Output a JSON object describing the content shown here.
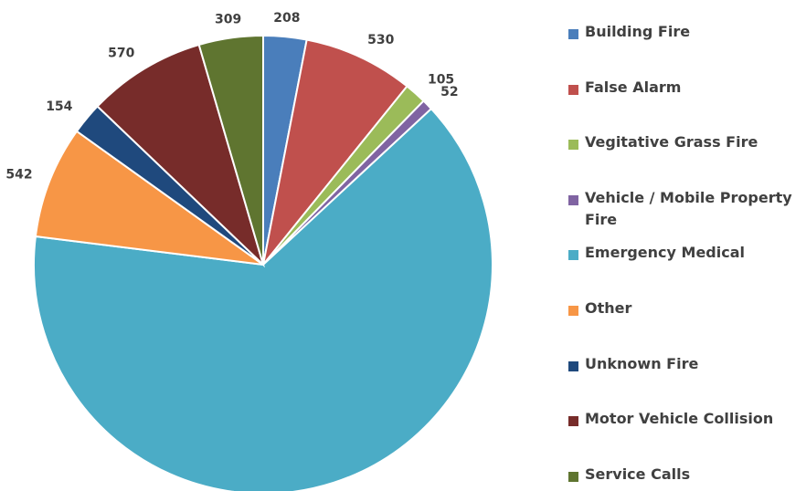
{
  "chart_data": {
    "type": "pie",
    "categories": [
      "Building Fire",
      "False Alarm",
      "Vegitative Grass Fire",
      "Vehicle / Mobile Property Fire",
      "Emergency Medical",
      "Other",
      "Unknown Fire",
      "Motor Vehicle Collision",
      "Service Calls"
    ],
    "values": [
      208,
      530,
      105,
      52,
      4369,
      542,
      154,
      570,
      309
    ],
    "colors": [
      "#4a7ebb",
      "#c0504d",
      "#9bbb59",
      "#8064a2",
      "#4bacc6",
      "#f79646",
      "#1f497d",
      "#772c2a",
      "#5f7530"
    ],
    "legend": "right"
  }
}
